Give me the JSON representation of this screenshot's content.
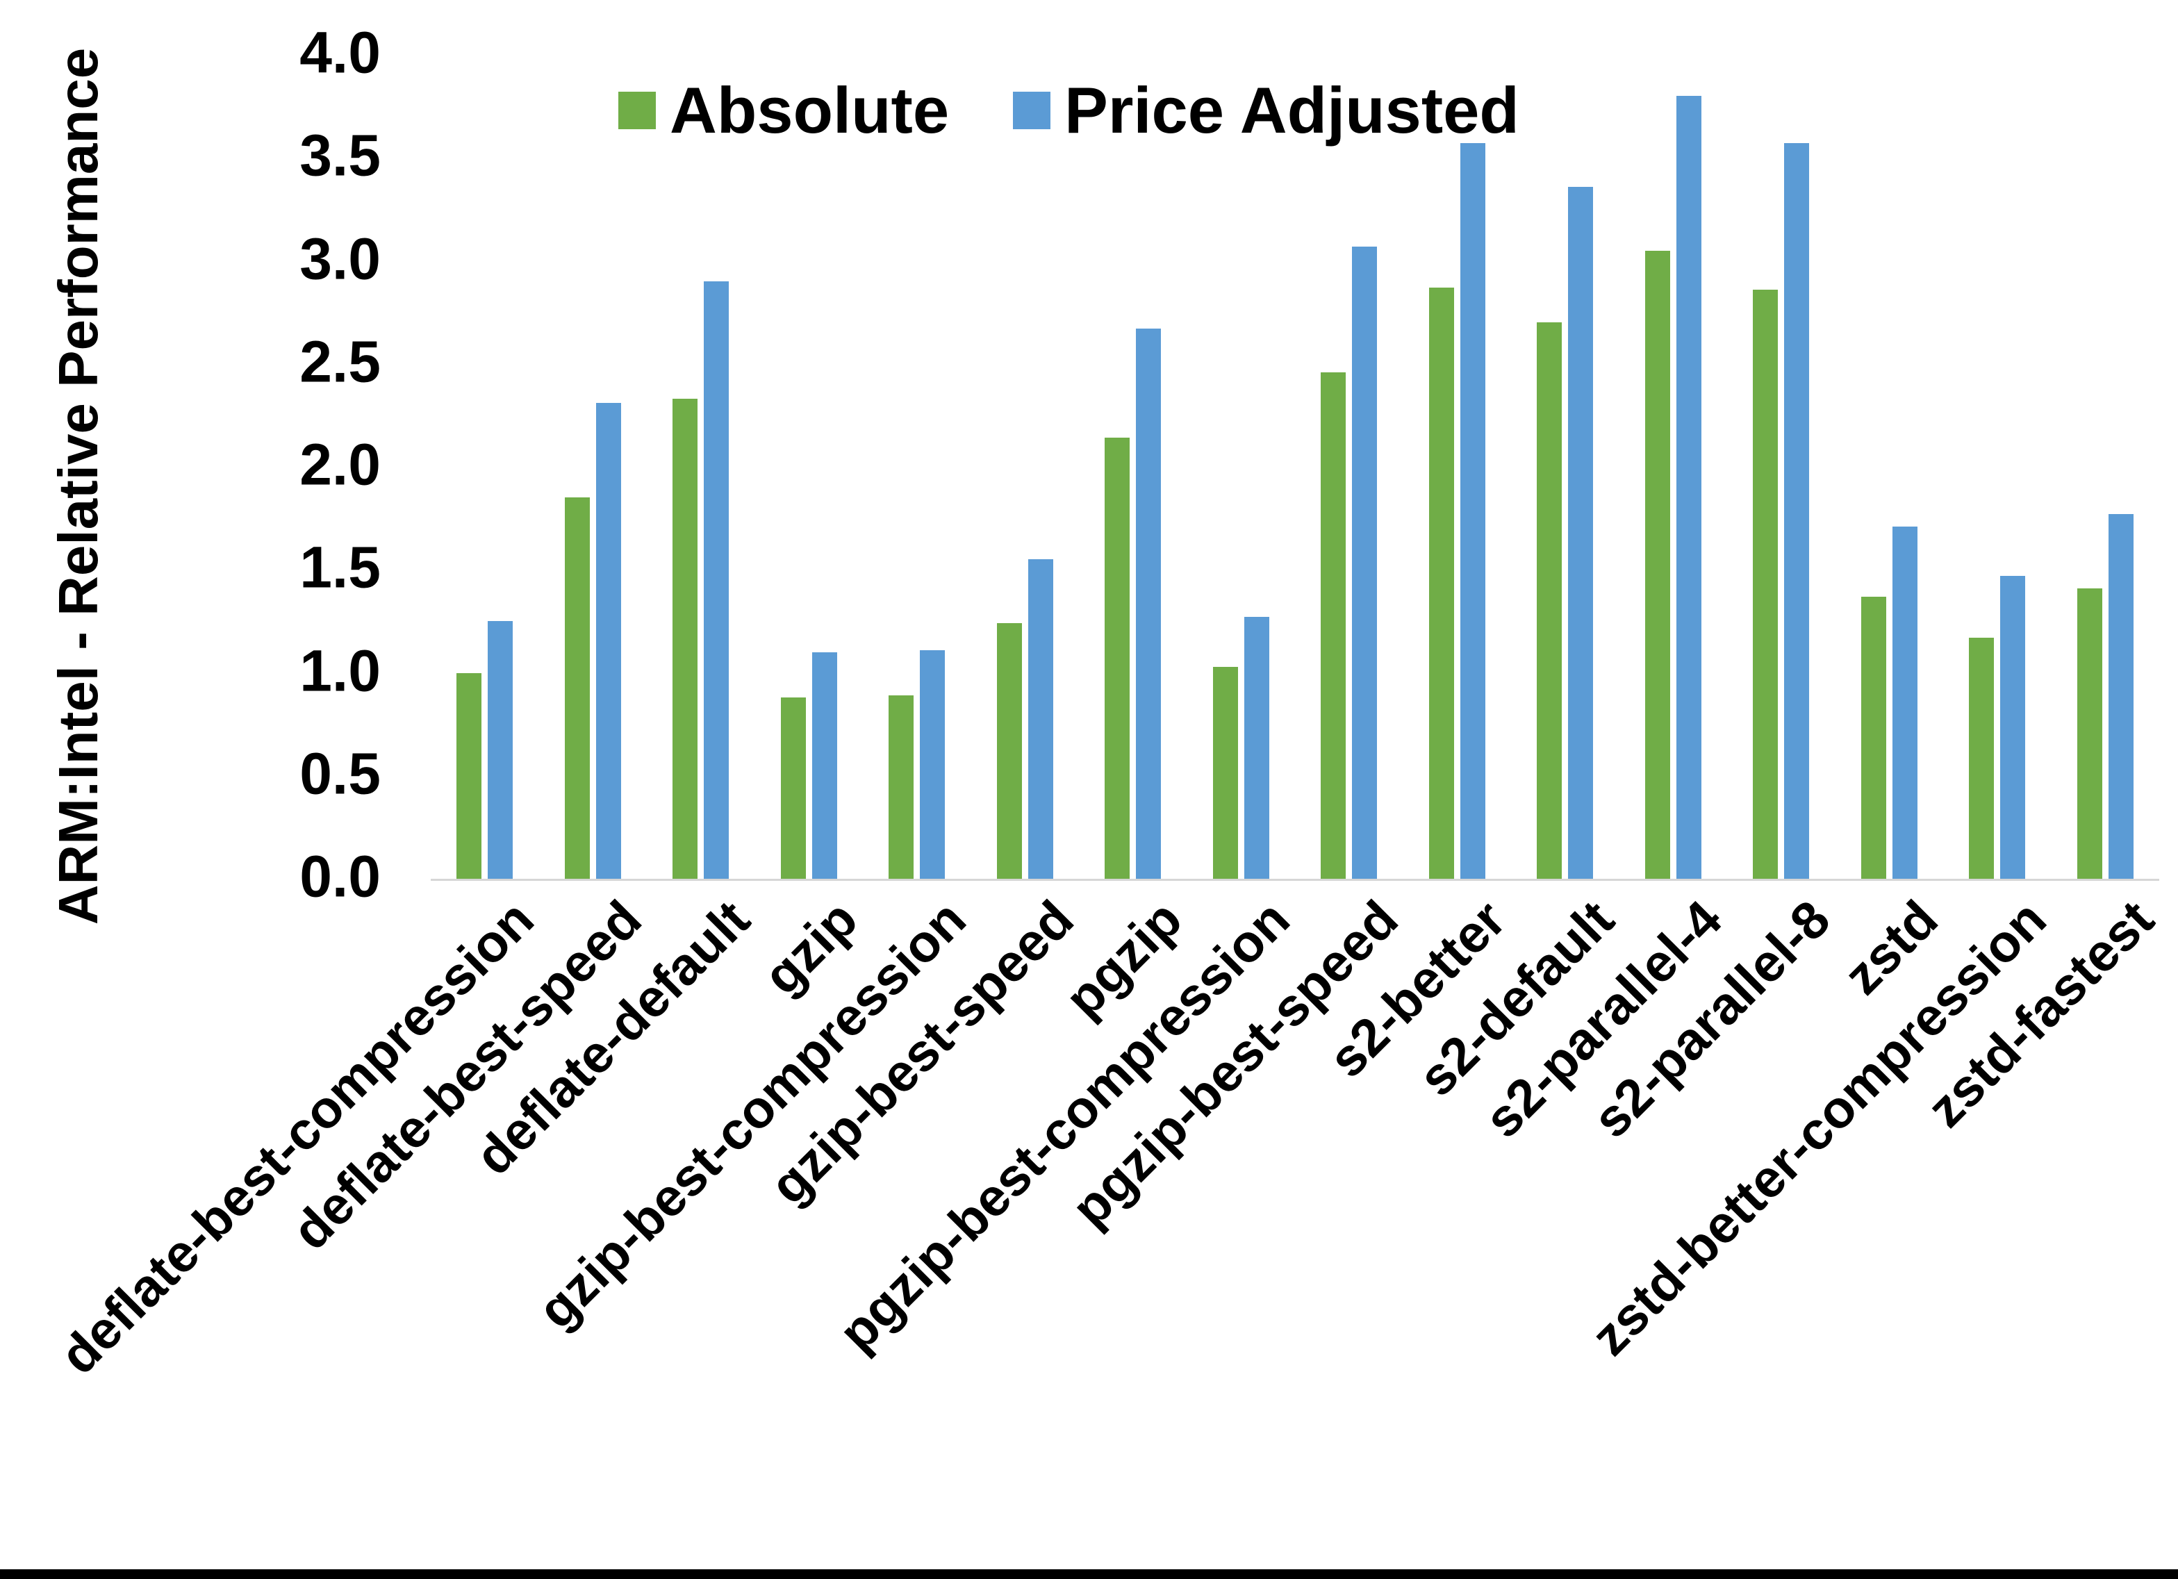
{
  "colors": {
    "absolute": "#70AD47",
    "price_adjusted": "#5B9BD5",
    "axis_line": "#D6D6D6",
    "text": "#000000",
    "background": "#FFFFFF",
    "bottom_edge_bar": "#000000"
  },
  "legend": {
    "items": [
      {
        "label": "Absolute",
        "color": "#70AD47"
      },
      {
        "label": "Price Adjusted",
        "color": "#5B9BD5"
      }
    ]
  },
  "chart_data": {
    "type": "bar",
    "title": "",
    "xlabel": "",
    "ylabel": "ARM:Intel - Relative Performance",
    "ylim": [
      0,
      4
    ],
    "yticks": [
      "0.0",
      "0.5",
      "1.0",
      "1.5",
      "2.0",
      "2.5",
      "3.0",
      "3.5",
      "4.0"
    ],
    "grid": false,
    "legend_position": "top",
    "categories": [
      "deflate-best-compression",
      "deflate-best-speed",
      "deflate-default",
      "gzip",
      "gzip-best-compression",
      "gzip-best-speed",
      "pgzip",
      "pgzip-best-compression",
      "pgzip-best-speed",
      "s2-better",
      "s2-default",
      "s2-parallel-4",
      "s2-parallel-8",
      "zstd",
      "zstd-better-compression",
      "zstd-fastest"
    ],
    "series": [
      {
        "name": "Absolute",
        "color": "#70AD47",
        "values": [
          1.0,
          1.85,
          2.33,
          0.88,
          0.89,
          1.24,
          2.14,
          1.03,
          2.46,
          2.87,
          2.7,
          3.05,
          2.86,
          1.37,
          1.17,
          1.41
        ]
      },
      {
        "name": "Price Adjusted",
        "color": "#5B9BD5",
        "values": [
          1.25,
          2.31,
          2.9,
          1.1,
          1.11,
          1.55,
          2.67,
          1.27,
          3.07,
          3.57,
          3.36,
          3.8,
          3.57,
          1.71,
          1.47,
          1.77
        ]
      }
    ]
  }
}
